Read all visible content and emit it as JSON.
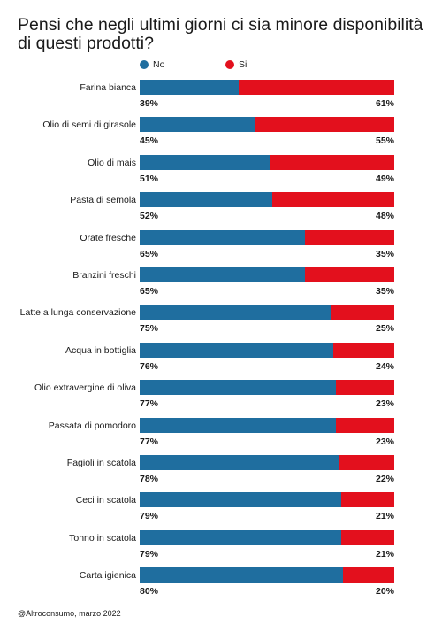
{
  "title": "Pensi che negli ultimi giorni ci sia minore disponibilità di questi prodotti?",
  "footer": "@Altroconsumo, marzo 2022",
  "colors": {
    "no": "#1f6e9f",
    "si": "#e3101d"
  },
  "chart_data": {
    "type": "bar",
    "stacked": true,
    "orientation": "horizontal",
    "title": "Pensi che negli ultimi giorni ci sia minore disponibilità di questi prodotti?",
    "legend_position": "top",
    "xlim": [
      0,
      100
    ],
    "grid": false,
    "categories": [
      "Farina bianca",
      "Olio di semi di girasole",
      "Olio di mais",
      "Pasta di semola",
      "Orate fresche",
      "Branzini freschi",
      "Latte a lunga conservazione",
      "Acqua in bottiglia",
      "Olio extravergine di oliva",
      "Passata di pomodoro",
      "Fagioli in scatola",
      "Ceci in scatola",
      "Tonno in scatola",
      "Carta igienica"
    ],
    "series": [
      {
        "name": "No",
        "values": [
          39,
          45,
          51,
          52,
          65,
          65,
          75,
          76,
          77,
          77,
          78,
          79,
          79,
          80
        ]
      },
      {
        "name": "Si",
        "values": [
          61,
          55,
          49,
          48,
          35,
          35,
          25,
          24,
          23,
          23,
          22,
          21,
          21,
          20
        ]
      }
    ],
    "value_suffix": "%"
  }
}
